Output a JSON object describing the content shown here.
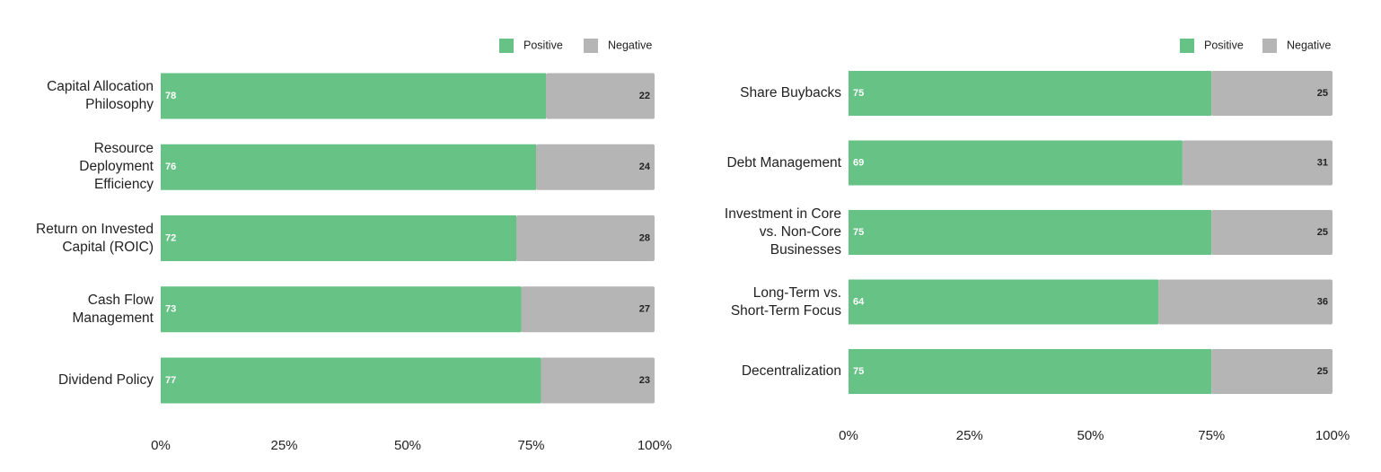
{
  "chart_data": [
    {
      "type": "bar",
      "orientation": "horizontal",
      "stacked": true,
      "categories": [
        "Capital Allocation\nPhilosophy",
        "Resource\nDeployment\nEfficiency",
        "Return on Invested\nCapital (ROIC)",
        "Cash Flow\nManagement",
        "Dividend Policy"
      ],
      "series": [
        {
          "name": "Positive",
          "color": "#66c285",
          "values": [
            78,
            76,
            72,
            73,
            77
          ]
        },
        {
          "name": "Negative",
          "color": "#b5b5b5",
          "values": [
            22,
            24,
            28,
            27,
            23
          ]
        }
      ],
      "xlim": [
        0,
        100
      ],
      "xticks": [
        {
          "value": 0,
          "label": "0%"
        },
        {
          "value": 25,
          "label": "25%"
        },
        {
          "value": 50,
          "label": "50%"
        },
        {
          "value": 75,
          "label": "75%"
        },
        {
          "value": 100,
          "label": "100%"
        }
      ],
      "legend": "top-right"
    },
    {
      "type": "bar",
      "orientation": "horizontal",
      "stacked": true,
      "categories": [
        "Share Buybacks",
        "Debt Management",
        "Investment in Core\nvs. Non-Core\nBusinesses",
        "Long-Term vs.\nShort-Term Focus",
        "Decentralization"
      ],
      "series": [
        {
          "name": "Positive",
          "color": "#66c285",
          "values": [
            75,
            69,
            75,
            64,
            75
          ]
        },
        {
          "name": "Negative",
          "color": "#b5b5b5",
          "values": [
            25,
            31,
            25,
            36,
            25
          ]
        }
      ],
      "xlim": [
        0,
        100
      ],
      "xticks": [
        {
          "value": 0,
          "label": "0%"
        },
        {
          "value": 25,
          "label": "25%"
        },
        {
          "value": 50,
          "label": "50%"
        },
        {
          "value": 75,
          "label": "75%"
        },
        {
          "value": 100,
          "label": "100%"
        }
      ],
      "legend": "top-right"
    }
  ]
}
